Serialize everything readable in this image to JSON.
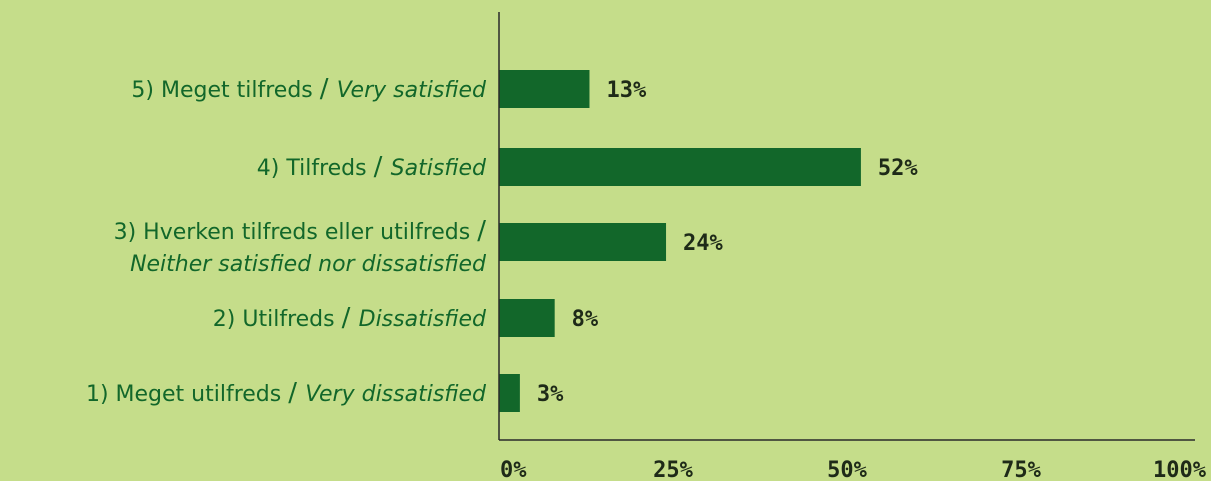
{
  "colors": {
    "background": "#c5dd8a",
    "bar": "#12672a",
    "label_text": "#12672a",
    "value_text": "#1e2a18",
    "axis": "#2a2a2a"
  },
  "chart_data": {
    "type": "bar",
    "orientation": "horizontal",
    "categories": [
      {
        "danish": "5) Meget tilfreds",
        "english": "Very satisfied"
      },
      {
        "danish": "4) Tilfreds",
        "english": "Satisfied"
      },
      {
        "danish": "3) Hverken tilfreds eller utilfreds",
        "english": "Neither satisfied nor dissatisfied"
      },
      {
        "danish": "2) Utilfreds",
        "english": "Dissatisfied"
      },
      {
        "danish": "1) Meget utilfreds",
        "english": "Very dissatisfied"
      }
    ],
    "values": [
      13,
      52,
      24,
      8,
      3
    ],
    "value_labels": [
      "13%",
      "52%",
      "24%",
      "8%",
      "3%"
    ],
    "xlim": [
      0,
      100
    ],
    "xticks": [
      0,
      25,
      50,
      75,
      100
    ],
    "xtick_labels": [
      "0%",
      "25%",
      "50%",
      "75%",
      "100%"
    ],
    "grid": false,
    "legend": "none"
  }
}
